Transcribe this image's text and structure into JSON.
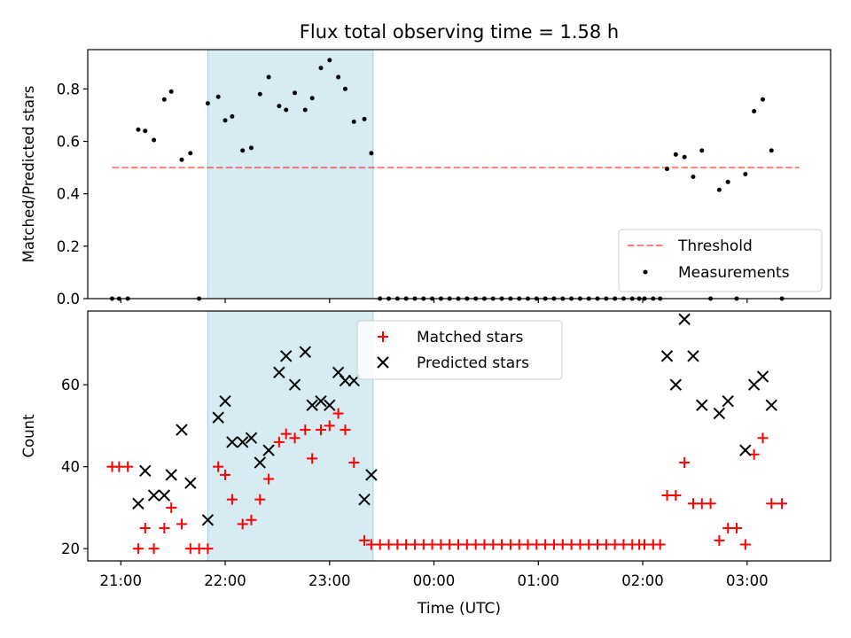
{
  "title": "Flux total observing time = 1.58 h",
  "xlabel": "Time (UTC)",
  "chart_data": [
    {
      "type": "scatter",
      "ylabel": "Matched/Predicted stars",
      "ylim": [
        0,
        0.95
      ],
      "yticks": [
        "0.0",
        "0.2",
        "0.4",
        "0.6",
        "0.8"
      ],
      "xlim": [
        "20:41",
        "03:48"
      ],
      "xticks": [
        "21:00",
        "22:00",
        "23:00",
        "00:00",
        "01:00",
        "02:00",
        "03:00"
      ],
      "highlight_span": [
        "21:50",
        "23:25"
      ],
      "threshold": 0.5,
      "threshold_x": [
        "20:55",
        "03:30"
      ],
      "legend": {
        "position": "bottom-right",
        "entries": [
          "Threshold",
          "Measurements"
        ]
      },
      "series": [
        {
          "name": "Measurements",
          "points": [
            [
              "20:55",
              0
            ],
            [
              "20:59",
              0
            ],
            [
              "21:04",
              0
            ],
            [
              "21:10",
              0.645
            ],
            [
              "21:14",
              0.64
            ],
            [
              "21:19",
              0.605
            ],
            [
              "21:25",
              0.76
            ],
            [
              "21:29",
              0.79
            ],
            [
              "21:35",
              0.53
            ],
            [
              "21:40",
              0.555
            ],
            [
              "21:45",
              0
            ],
            [
              "21:50",
              0.745
            ],
            [
              "21:56",
              0.77
            ],
            [
              "22:00",
              0.68
            ],
            [
              "22:04",
              0.695
            ],
            [
              "22:10",
              0.565
            ],
            [
              "22:15",
              0.575
            ],
            [
              "22:20",
              0.78
            ],
            [
              "22:25",
              0.845
            ],
            [
              "22:31",
              0.735
            ],
            [
              "22:35",
              0.72
            ],
            [
              "22:40",
              0.785
            ],
            [
              "22:46",
              0.72
            ],
            [
              "22:50",
              0.765
            ],
            [
              "22:55",
              0.88
            ],
            [
              "23:00",
              0.91
            ],
            [
              "23:05",
              0.845
            ],
            [
              "23:09",
              0.8
            ],
            [
              "23:14",
              0.675
            ],
            [
              "23:20",
              0.685
            ],
            [
              "23:24",
              0.555
            ],
            [
              "23:29",
              0
            ],
            [
              "23:34",
              0
            ],
            [
              "23:39",
              0
            ],
            [
              "23:44",
              0
            ],
            [
              "23:49",
              0
            ],
            [
              "23:54",
              0
            ],
            [
              "23:59",
              0
            ],
            [
              "00:04",
              0
            ],
            [
              "00:09",
              0
            ],
            [
              "00:14",
              0
            ],
            [
              "00:19",
              0
            ],
            [
              "00:24",
              0
            ],
            [
              "00:29",
              0
            ],
            [
              "00:34",
              0
            ],
            [
              "00:39",
              0
            ],
            [
              "00:44",
              0
            ],
            [
              "00:49",
              0
            ],
            [
              "00:54",
              0
            ],
            [
              "00:59",
              0
            ],
            [
              "01:04",
              0
            ],
            [
              "01:09",
              0
            ],
            [
              "01:14",
              0
            ],
            [
              "01:19",
              0
            ],
            [
              "01:24",
              0
            ],
            [
              "01:29",
              0
            ],
            [
              "01:34",
              0
            ],
            [
              "01:39",
              0
            ],
            [
              "01:44",
              0
            ],
            [
              "01:49",
              0
            ],
            [
              "01:54",
              0
            ],
            [
              "01:58",
              0
            ],
            [
              "02:01",
              0
            ],
            [
              "02:06",
              0
            ],
            [
              "02:10",
              0
            ],
            [
              "02:14",
              0.495
            ],
            [
              "02:19",
              0.55
            ],
            [
              "02:24",
              0.54
            ],
            [
              "02:29",
              0.465
            ],
            [
              "02:34",
              0.565
            ],
            [
              "02:39",
              0
            ],
            [
              "02:44",
              0.415
            ],
            [
              "02:49",
              0.445
            ],
            [
              "02:54",
              0
            ],
            [
              "02:59",
              0.475
            ],
            [
              "03:04",
              0.715
            ],
            [
              "03:09",
              0.76
            ],
            [
              "03:14",
              0.565
            ],
            [
              "03:20",
              0
            ]
          ]
        }
      ]
    },
    {
      "type": "scatter",
      "ylabel": "Count",
      "ylim": [
        17,
        78
      ],
      "yticks": [
        "20",
        "40",
        "60"
      ],
      "xlim": [
        "20:41",
        "03:48"
      ],
      "xticks": [
        "21:00",
        "22:00",
        "23:00",
        "00:00",
        "01:00",
        "02:00",
        "03:00"
      ],
      "highlight_span": [
        "21:50",
        "23:25"
      ],
      "legend": {
        "position": "top-center",
        "entries": [
          "Matched stars",
          "Predicted stars"
        ]
      },
      "series": [
        {
          "name": "Matched stars",
          "color": "#ff0000",
          "marker": "plus",
          "points": [
            [
              "20:55",
              40
            ],
            [
              "20:59",
              40
            ],
            [
              "21:04",
              40
            ],
            [
              "21:10",
              20
            ],
            [
              "21:14",
              25
            ],
            [
              "21:19",
              20
            ],
            [
              "21:25",
              25
            ],
            [
              "21:29",
              30
            ],
            [
              "21:35",
              26
            ],
            [
              "21:40",
              20
            ],
            [
              "21:45",
              20
            ],
            [
              "21:50",
              20
            ],
            [
              "21:56",
              40
            ],
            [
              "22:00",
              38
            ],
            [
              "22:04",
              32
            ],
            [
              "22:10",
              26
            ],
            [
              "22:15",
              27
            ],
            [
              "22:20",
              32
            ],
            [
              "22:25",
              37
            ],
            [
              "22:31",
              46
            ],
            [
              "22:35",
              48
            ],
            [
              "22:40",
              47
            ],
            [
              "22:46",
              49
            ],
            [
              "22:50",
              42
            ],
            [
              "22:55",
              49
            ],
            [
              "23:00",
              50
            ],
            [
              "23:05",
              53
            ],
            [
              "23:09",
              49
            ],
            [
              "23:14",
              41
            ],
            [
              "23:20",
              22
            ],
            [
              "23:24",
              21
            ],
            [
              "23:29",
              21
            ],
            [
              "23:34",
              21
            ],
            [
              "23:39",
              21
            ],
            [
              "23:44",
              21
            ],
            [
              "23:49",
              21
            ],
            [
              "23:54",
              21
            ],
            [
              "23:59",
              21
            ],
            [
              "00:04",
              21
            ],
            [
              "00:09",
              21
            ],
            [
              "00:14",
              21
            ],
            [
              "00:19",
              21
            ],
            [
              "00:24",
              21
            ],
            [
              "00:29",
              21
            ],
            [
              "00:34",
              21
            ],
            [
              "00:39",
              21
            ],
            [
              "00:44",
              21
            ],
            [
              "00:49",
              21
            ],
            [
              "00:54",
              21
            ],
            [
              "00:59",
              21
            ],
            [
              "01:04",
              21
            ],
            [
              "01:09",
              21
            ],
            [
              "01:14",
              21
            ],
            [
              "01:19",
              21
            ],
            [
              "01:24",
              21
            ],
            [
              "01:29",
              21
            ],
            [
              "01:34",
              21
            ],
            [
              "01:39",
              21
            ],
            [
              "01:44",
              21
            ],
            [
              "01:49",
              21
            ],
            [
              "01:54",
              21
            ],
            [
              "01:58",
              21
            ],
            [
              "02:01",
              21
            ],
            [
              "02:06",
              21
            ],
            [
              "02:10",
              21
            ],
            [
              "02:14",
              33
            ],
            [
              "02:19",
              33
            ],
            [
              "02:24",
              41
            ],
            [
              "02:29",
              31
            ],
            [
              "02:34",
              31
            ],
            [
              "02:39",
              31
            ],
            [
              "02:44",
              22
            ],
            [
              "02:49",
              25
            ],
            [
              "02:54",
              25
            ],
            [
              "02:59",
              21
            ],
            [
              "03:04",
              43
            ],
            [
              "03:09",
              47
            ],
            [
              "03:14",
              31
            ],
            [
              "03:20",
              31
            ]
          ]
        },
        {
          "name": "Predicted stars",
          "color": "#000000",
          "marker": "x",
          "points": [
            [
              "21:10",
              31
            ],
            [
              "21:14",
              39
            ],
            [
              "21:19",
              33
            ],
            [
              "21:25",
              33
            ],
            [
              "21:29",
              38
            ],
            [
              "21:35",
              49
            ],
            [
              "21:40",
              36
            ],
            [
              "21:50",
              27
            ],
            [
              "21:56",
              52
            ],
            [
              "22:00",
              56
            ],
            [
              "22:04",
              46
            ],
            [
              "22:10",
              46
            ],
            [
              "22:15",
              47
            ],
            [
              "22:20",
              41
            ],
            [
              "22:25",
              44
            ],
            [
              "22:31",
              63
            ],
            [
              "22:35",
              67
            ],
            [
              "22:40",
              60
            ],
            [
              "22:46",
              68
            ],
            [
              "22:50",
              55
            ],
            [
              "22:55",
              56
            ],
            [
              "23:00",
              55
            ],
            [
              "23:05",
              63
            ],
            [
              "23:09",
              61
            ],
            [
              "23:14",
              61
            ],
            [
              "23:20",
              32
            ],
            [
              "23:24",
              38
            ],
            [
              "02:14",
              67
            ],
            [
              "02:19",
              60
            ],
            [
              "02:24",
              76
            ],
            [
              "02:29",
              67
            ],
            [
              "02:34",
              55
            ],
            [
              "02:44",
              53
            ],
            [
              "02:49",
              56
            ],
            [
              "02:59",
              44
            ],
            [
              "03:04",
              60
            ],
            [
              "03:09",
              62
            ],
            [
              "03:14",
              55
            ]
          ]
        }
      ]
    }
  ]
}
